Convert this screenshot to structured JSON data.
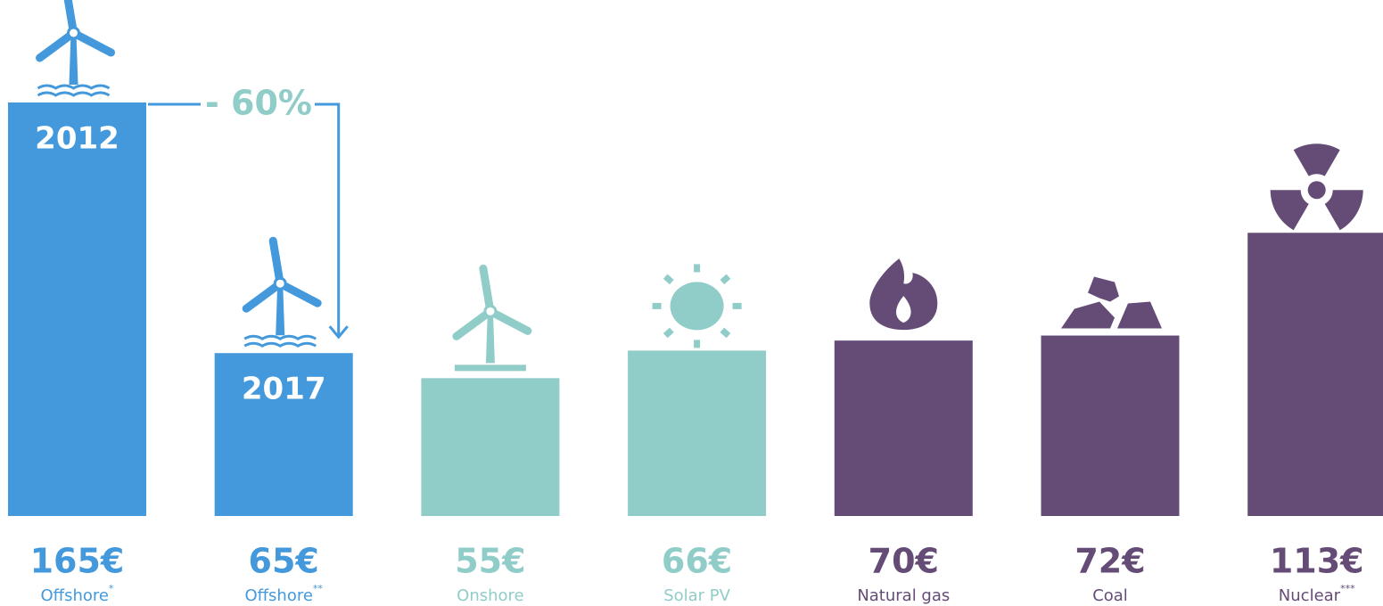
{
  "chart_data": {
    "type": "bar",
    "categories": [
      "Offshore",
      "Offshore",
      "Onshore",
      "Solar PV",
      "Natural gas",
      "Coal",
      "Nuclear"
    ],
    "footnote_marks": [
      "*",
      "**",
      null,
      null,
      null,
      null,
      "***"
    ],
    "values": [
      165,
      65,
      55,
      66,
      70,
      72,
      113
    ],
    "value_labels": [
      "165€",
      "65€",
      "55€",
      "66€",
      "70€",
      "72€",
      "113€"
    ],
    "bar_labels": [
      "2012",
      "2017",
      null,
      null,
      null,
      null,
      null
    ],
    "colors": [
      "#4399dc",
      "#4399dc",
      "#90cdc8",
      "#90cdc8",
      "#654c77",
      "#654c77",
      "#654c77"
    ],
    "annotation": "- 60%"
  }
}
